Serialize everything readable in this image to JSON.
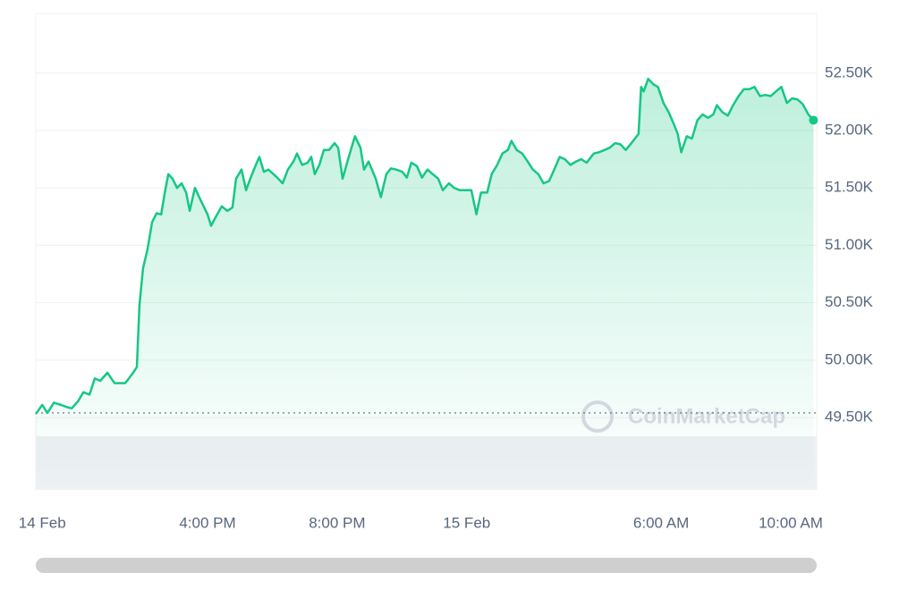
{
  "chart_data": {
    "type": "area",
    "watermark": "CoinMarketCap",
    "color": "#16c784",
    "baseline": 49540,
    "x": [
      10.7,
      10.9,
      11.06,
      11.26,
      11.48,
      11.67,
      11.81,
      12.0,
      12.17,
      12.36,
      12.52,
      12.69,
      12.91,
      13.13,
      13.27,
      13.46,
      13.68,
      13.82,
      13.9,
      14.01,
      14.15,
      14.29,
      14.43,
      14.57,
      14.68,
      14.79,
      14.92,
      15.06,
      15.2,
      15.34,
      15.45,
      15.61,
      15.81,
      16.0,
      16.11,
      16.22,
      16.44,
      16.61,
      16.77,
      16.88,
      17.05,
      17.19,
      17.32,
      17.49,
      17.6,
      17.74,
      17.88,
      18.15,
      18.32,
      18.48,
      18.65,
      18.76,
      18.92,
      19.09,
      19.2,
      19.31,
      19.45,
      19.59,
      19.75,
      19.92,
      20.03,
      20.17,
      20.36,
      20.55,
      20.72,
      20.83,
      20.97,
      21.19,
      21.35,
      21.52,
      21.66,
      21.82,
      22.01,
      22.15,
      22.29,
      22.46,
      22.62,
      22.79,
      22.95,
      23.12,
      23.26,
      23.45,
      23.61,
      23.78,
      23.94,
      24.14,
      24.3,
      24.44,
      24.63,
      24.77,
      24.94,
      25.1,
      25.27,
      25.38,
      25.54,
      25.71,
      25.88,
      26.04,
      26.21,
      26.37,
      26.54,
      26.7,
      26.87,
      27.03,
      27.2,
      27.37,
      27.53,
      27.7,
      27.92,
      28.08,
      28.25,
      28.41,
      28.58,
      28.74,
      28.91,
      29.08,
      29.3,
      29.38,
      29.46,
      29.6,
      29.77,
      29.9,
      30.07,
      30.23,
      30.4,
      30.51,
      30.62,
      30.79,
      30.95,
      31.12,
      31.28,
      31.45,
      31.61,
      31.72,
      31.89,
      32.06,
      32.22,
      32.39,
      32.55,
      32.72,
      32.88,
      33.05,
      33.21,
      33.38,
      33.54,
      33.71,
      33.88,
      34.04,
      34.21,
      34.37,
      34.54,
      34.7
    ],
    "values": [
      49530,
      49610,
      49540,
      49630,
      49610,
      49590,
      49580,
      49640,
      49720,
      49700,
      49840,
      49820,
      49890,
      49800,
      49800,
      49800,
      49880,
      49940,
      50480,
      50800,
      50970,
      51200,
      51280,
      51270,
      51460,
      51620,
      51580,
      51500,
      51540,
      51460,
      51300,
      51500,
      51380,
      51270,
      51170,
      51230,
      51340,
      51300,
      51330,
      51580,
      51660,
      51480,
      51580,
      51700,
      51770,
      51640,
      51660,
      51590,
      51540,
      51660,
      51730,
      51800,
      51700,
      51720,
      51770,
      51620,
      51700,
      51830,
      51830,
      51890,
      51850,
      51580,
      51770,
      51950,
      51850,
      51660,
      51730,
      51580,
      51420,
      51620,
      51670,
      51660,
      51640,
      51590,
      51720,
      51690,
      51590,
      51660,
      51620,
      51580,
      51480,
      51540,
      51500,
      51480,
      51480,
      51480,
      51270,
      51460,
      51460,
      51620,
      51700,
      51800,
      51830,
      51910,
      51830,
      51800,
      51730,
      51660,
      51620,
      51540,
      51560,
      51660,
      51770,
      51750,
      51700,
      51730,
      51750,
      51720,
      51800,
      51810,
      51830,
      51850,
      51890,
      51880,
      51830,
      51890,
      51970,
      52380,
      52340,
      52450,
      52400,
      52380,
      52240,
      52160,
      52050,
      51970,
      51810,
      51950,
      51930,
      52090,
      52140,
      52110,
      52140,
      52220,
      52160,
      52130,
      52220,
      52300,
      52360,
      52360,
      52380,
      52300,
      52310,
      52300,
      52340,
      52380,
      52240,
      52280,
      52270,
      52230,
      52140,
      52090
    ],
    "xlim": [
      10.7,
      34.8
    ],
    "xticks": [
      {
        "value": 10.9,
        "label": "14 Feb"
      },
      {
        "value": 16,
        "label": "4:00 PM"
      },
      {
        "value": 20,
        "label": "8:00 PM"
      },
      {
        "value": 24,
        "label": "15 Feb"
      },
      {
        "value": 30,
        "label": "6:00 AM"
      },
      {
        "value": 34,
        "label": "10:00 AM"
      }
    ],
    "ylim": [
      48870,
      53020
    ],
    "yticks": [
      {
        "value": 49500,
        "label": "49.50K"
      },
      {
        "value": 50000,
        "label": "50.00K"
      },
      {
        "value": 50500,
        "label": "50.50K"
      },
      {
        "value": 51000,
        "label": "51.00K"
      },
      {
        "value": 51500,
        "label": "51.50K"
      },
      {
        "value": 52000,
        "label": "52.00K"
      },
      {
        "value": 52500,
        "label": "52.50K"
      }
    ],
    "grid": true
  }
}
